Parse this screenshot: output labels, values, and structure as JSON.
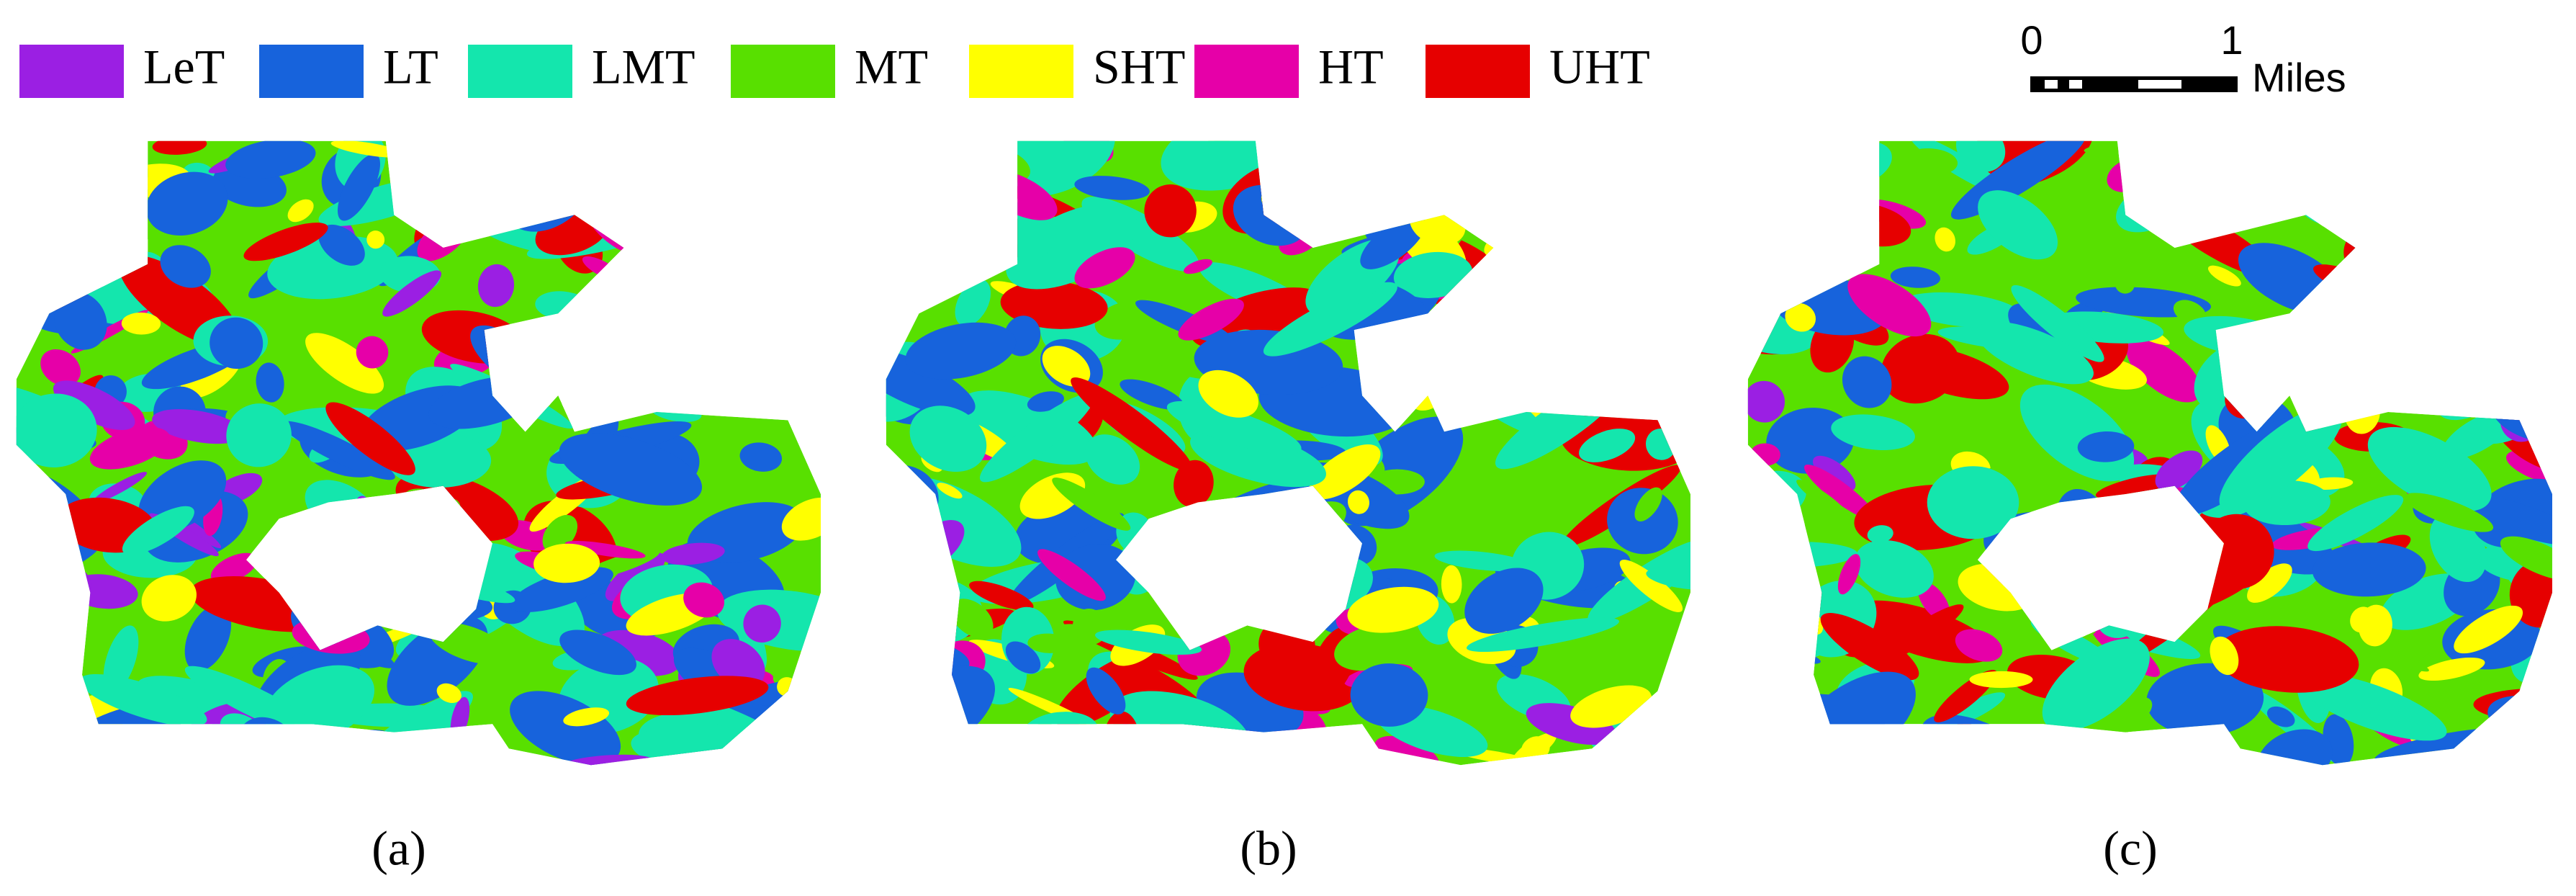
{
  "legend": {
    "items": [
      {
        "label": "LeT",
        "color": "#9b1fe3"
      },
      {
        "label": "LT",
        "color": "#1763dc"
      },
      {
        "label": "LMT",
        "color": "#14e6ad"
      },
      {
        "label": "MT",
        "color": "#58e000"
      },
      {
        "label": "SHT",
        "color": "#ffff00"
      },
      {
        "label": "HT",
        "color": "#e600a8"
      },
      {
        "label": "UHT",
        "color": "#e60000"
      }
    ]
  },
  "scale_bar": {
    "start": "0",
    "end": "1",
    "unit": "Miles"
  },
  "panels": [
    {
      "label": "(a)"
    },
    {
      "label": "(b)"
    },
    {
      "label": "(c)"
    }
  ]
}
